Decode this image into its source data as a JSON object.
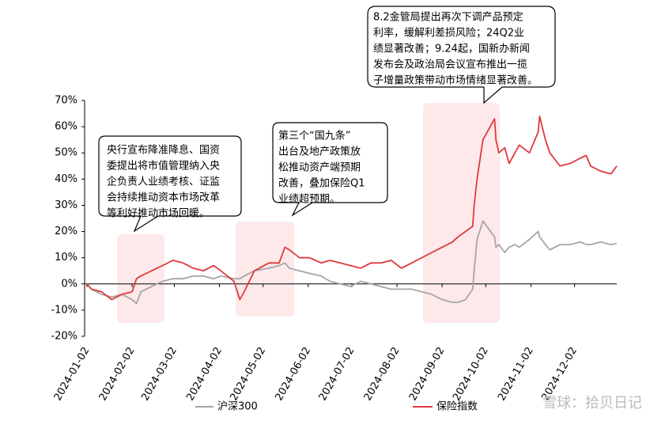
{
  "chart_data": {
    "type": "line",
    "x": [
      "2024-01-02",
      "2024-01-05",
      "2024-01-12",
      "2024-01-19",
      "2024-01-26",
      "2024-02-02",
      "2024-02-05",
      "2024-02-08",
      "2024-02-19",
      "2024-02-23",
      "2024-03-01",
      "2024-03-08",
      "2024-03-15",
      "2024-03-22",
      "2024-03-29",
      "2024-04-03",
      "2024-04-12",
      "2024-04-16",
      "2024-04-19",
      "2024-04-26",
      "2024-05-06",
      "2024-05-13",
      "2024-05-17",
      "2024-05-20",
      "2024-05-27",
      "2024-06-03",
      "2024-06-11",
      "2024-06-17",
      "2024-06-24",
      "2024-07-01",
      "2024-07-08",
      "2024-07-15",
      "2024-07-22",
      "2024-07-29",
      "2024-08-05",
      "2024-08-12",
      "2024-08-19",
      "2024-08-26",
      "2024-09-02",
      "2024-09-09",
      "2024-09-13",
      "2024-09-18",
      "2024-09-23",
      "2024-09-24",
      "2024-09-26",
      "2024-09-30",
      "2024-10-08",
      "2024-10-09",
      "2024-10-11",
      "2024-10-15",
      "2024-10-18",
      "2024-10-22",
      "2024-10-25",
      "2024-11-01",
      "2024-11-07",
      "2024-11-08",
      "2024-11-12",
      "2024-11-15",
      "2024-11-22",
      "2024-11-29",
      "2024-12-06",
      "2024-12-10",
      "2024-12-13",
      "2024-12-20",
      "2024-12-27",
      "2024-12-31"
    ],
    "series": [
      {
        "name": "沪深300",
        "color": "#a6a6a6",
        "values": [
          0,
          -2,
          -4,
          -5,
          -4,
          -6,
          -7.5,
          -3,
          0,
          1,
          2,
          2,
          3,
          3,
          2,
          3,
          2,
          2,
          3,
          5,
          6,
          7,
          8,
          6,
          5,
          4,
          3,
          1,
          0,
          -1,
          1,
          0,
          -1,
          -2,
          -2,
          -2,
          -3,
          -4,
          -6,
          -7,
          -7,
          -6,
          -2,
          5,
          17,
          24,
          18,
          14,
          15,
          12,
          14,
          15,
          14,
          17,
          20,
          18,
          15,
          13,
          15,
          15,
          16,
          15,
          15,
          16,
          15,
          15.5
        ]
      },
      {
        "name": "保险指数",
        "color": "#e0393e",
        "values": [
          0,
          -2,
          -3,
          -6,
          -4,
          -3,
          2,
          3,
          6,
          7,
          9,
          8,
          6,
          5,
          7,
          5,
          1,
          -6,
          -3,
          5,
          8,
          8,
          14,
          13,
          10,
          10,
          8,
          9,
          8,
          7,
          6,
          8,
          8,
          9,
          6,
          8,
          10,
          12,
          14,
          16,
          18,
          20,
          22,
          30,
          40,
          55,
          63,
          55,
          50,
          52,
          46,
          50,
          53,
          50,
          58,
          64,
          55,
          50,
          45,
          46,
          48,
          49,
          45,
          43,
          42,
          45
        ]
      }
    ],
    "xlim": [
      "2024-01-02",
      "2024-12-31"
    ],
    "xticks": [
      "2024-01-02",
      "2024-02-02",
      "2024-03-02",
      "2024-04-02",
      "2024-05-02",
      "2024-06-02",
      "2024-07-02",
      "2024-08-02",
      "2024-09-02",
      "2024-10-02",
      "2024-11-02",
      "2024-12-02"
    ],
    "ylim": [
      -20,
      70
    ],
    "yticks": [
      {
        "value": -20,
        "label": "-20%"
      },
      {
        "value": -10,
        "label": "-10%"
      },
      {
        "value": 0,
        "label": "0%"
      },
      {
        "value": 10,
        "label": "10%"
      },
      {
        "value": 20,
        "label": "20%"
      },
      {
        "value": 30,
        "label": "30%"
      },
      {
        "value": 40,
        "label": "40%"
      },
      {
        "value": 50,
        "label": "50%"
      },
      {
        "value": 60,
        "label": "60%"
      },
      {
        "value": 70,
        "label": "70%"
      }
    ],
    "annotations": [
      [
        "央行宣布降准降息、国资",
        "委提出将市值管理纳入央",
        "企负责人业绩考核、证监",
        "会持续推动资本市场改革",
        "等利好推动市场回暖。"
      ],
      [
        "第三个“国九条”",
        "出台及地产政策放",
        "松推动资产端预期",
        "改善，叠加保险Q1",
        "业绩超预期。"
      ],
      [
        "8.2金管局提出再次下调产品预定",
        "利率，缓解利差损风险；24Q2业",
        "绩显著改善；9.24起，国新办新闻",
        "发布会及政治局会议宣布推出一揽",
        "子增量政策带动市场情绪显著改善。"
      ]
    ],
    "watermark": "雪球：拾贝日记"
  }
}
